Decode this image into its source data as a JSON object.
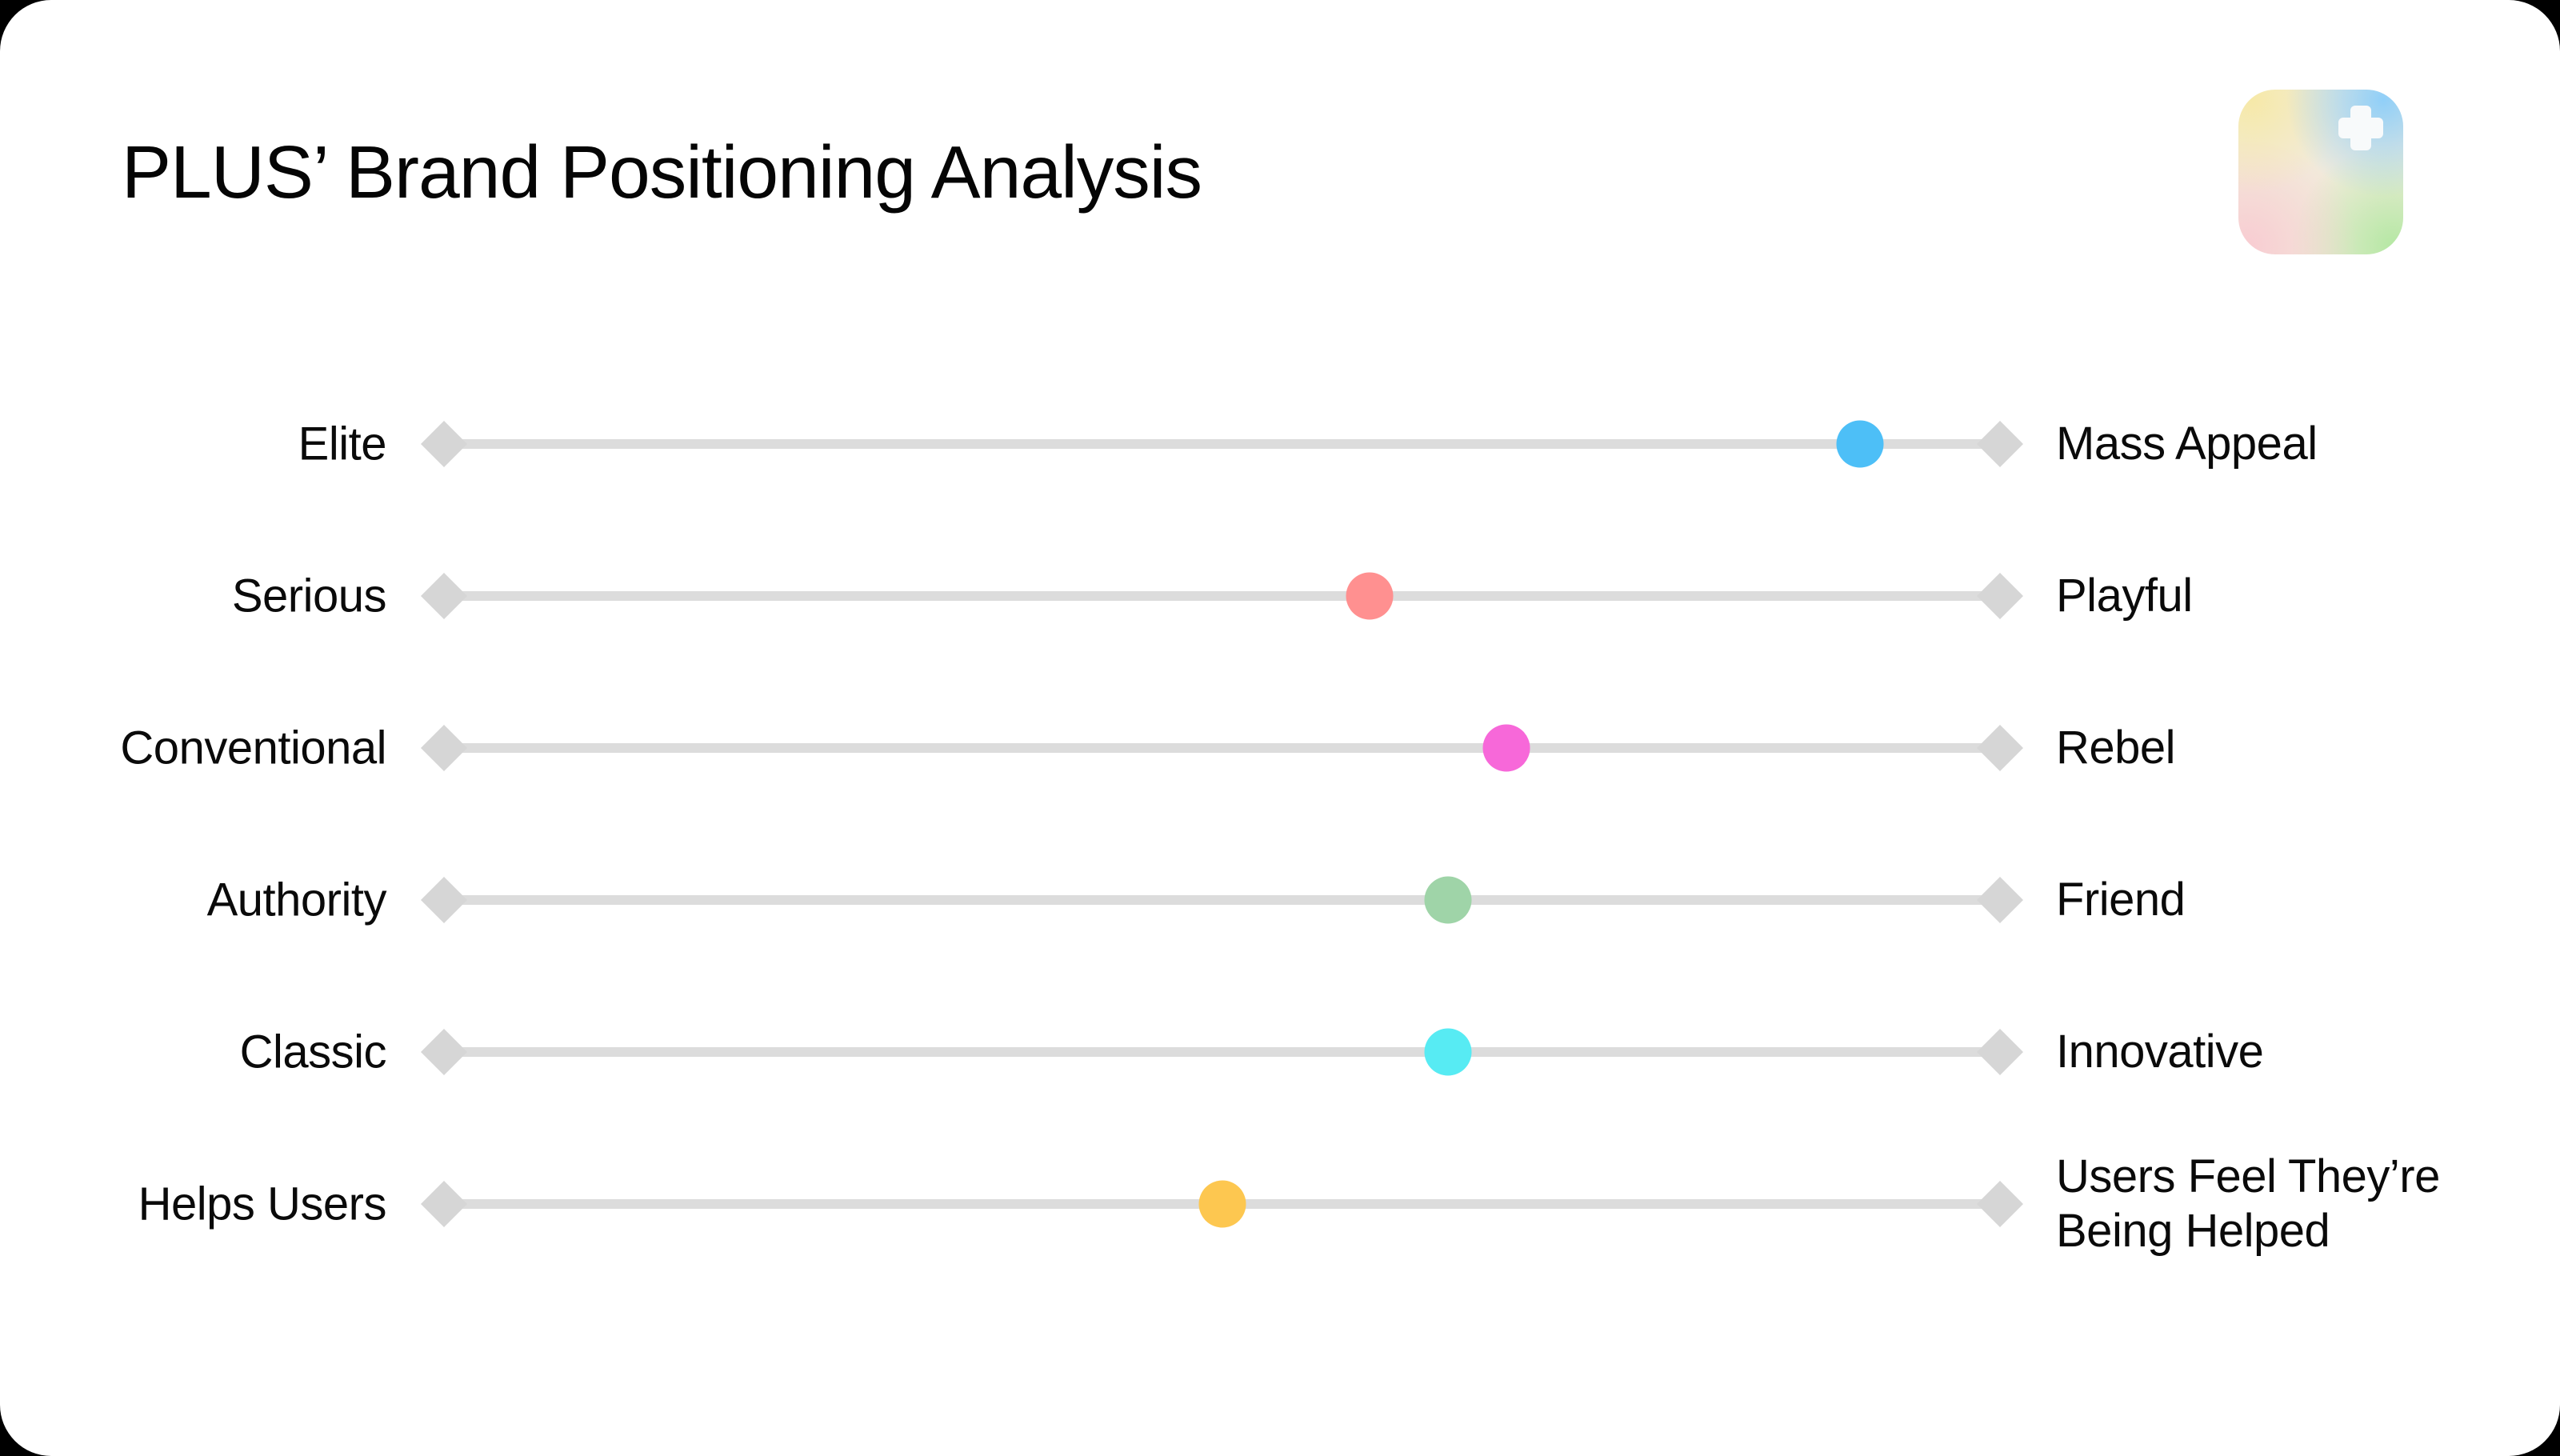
{
  "title": "PLUS’ Brand Positioning Analysis",
  "colors": {
    "page_background": "#000000",
    "card_background": "#FFFFFF",
    "title_text": "#050505",
    "label_text": "#0A0A0A"
  },
  "logo": {
    "icon": "plus-icon",
    "plus_color": "#F8FAFB",
    "gradient": {
      "top_left": "#F6E9A8",
      "top_right": "#90CFF8",
      "bottom_left": "#F8CCD2",
      "bottom_right": "#B5E8A4",
      "base": "#F2EBDB"
    }
  },
  "chart_data": {
    "type": "scatter",
    "variant": "semantic_differential_sliders",
    "title": "PLUS’ Brand Positioning Analysis",
    "scale": [
      0,
      100
    ],
    "value_meaning": "dot position along the left–right attribute axis, percent from left endpoint",
    "track_color": "#DCDCDC",
    "endpoint_color": "#D6D6D6",
    "endpoint_shape": "diamond",
    "grid": false,
    "legend": "none",
    "rows": [
      {
        "left": "Elite",
        "right": "Mass Appeal",
        "value": 91,
        "dot_color": "#4DBFF7"
      },
      {
        "left": "Serious",
        "right": "Playful",
        "value": 59.5,
        "dot_color": "#FF9090"
      },
      {
        "left": "Conventional",
        "right": "Rebel",
        "value": 68.3,
        "dot_color": "#F768D9"
      },
      {
        "left": "Authority",
        "right": "Friend",
        "value": 64.5,
        "dot_color": "#9FD4A8"
      },
      {
        "left": "Classic",
        "right": "Innovative",
        "value": 64.5,
        "dot_color": "#57EBF3"
      },
      {
        "left": "Helps Users",
        "right": "Users Feel They’re Being Helped",
        "value": 50,
        "dot_color": "#FDC750"
      }
    ]
  }
}
